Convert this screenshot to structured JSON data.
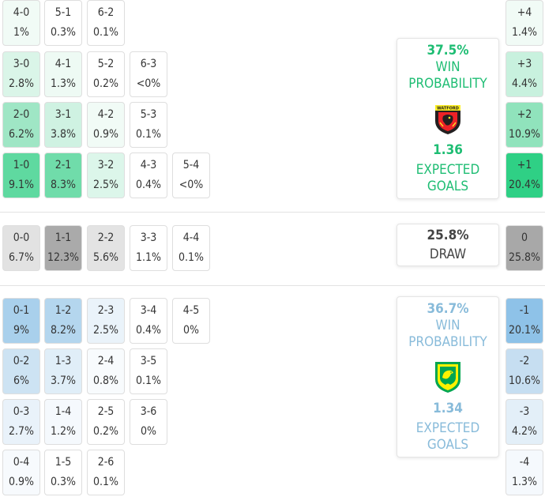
{
  "home": {
    "scores": [
      {
        "score": "4-0",
        "prob": "1%",
        "color": "#f1fbf6"
      },
      {
        "score": "5-1",
        "prob": "0.3%",
        "color": "#ffffff"
      },
      {
        "score": "6-2",
        "prob": "0.1%",
        "color": "#ffffff"
      },
      {
        "score": "3-0",
        "prob": "2.8%",
        "color": "#daf5e8"
      },
      {
        "score": "4-1",
        "prob": "1.3%",
        "color": "#eefaf4"
      },
      {
        "score": "5-2",
        "prob": "0.2%",
        "color": "#ffffff"
      },
      {
        "score": "6-3",
        "prob": "<0%",
        "color": "#ffffff"
      },
      {
        "score": "2-0",
        "prob": "6.2%",
        "color": "#9fe6c5"
      },
      {
        "score": "3-1",
        "prob": "3.8%",
        "color": "#cff2e2"
      },
      {
        "score": "4-2",
        "prob": "0.9%",
        "color": "#f1fbf6"
      },
      {
        "score": "5-3",
        "prob": "0.1%",
        "color": "#ffffff"
      },
      {
        "score": "1-0",
        "prob": "9.1%",
        "color": "#5fd9a0"
      },
      {
        "score": "2-1",
        "prob": "8.3%",
        "color": "#70dcaa"
      },
      {
        "score": "3-2",
        "prob": "2.5%",
        "color": "#dcf6ea"
      },
      {
        "score": "4-3",
        "prob": "0.4%",
        "color": "#ffffff"
      },
      {
        "score": "5-4",
        "prob": "<0%",
        "color": "#ffffff"
      }
    ],
    "margins": [
      {
        "margin": "+4",
        "prob": "1.4%",
        "color": "#f1fbf6"
      },
      {
        "margin": "+3",
        "prob": "4.4%",
        "color": "#c8f1de"
      },
      {
        "margin": "+2",
        "prob": "10.9%",
        "color": "#90e3bc"
      },
      {
        "margin": "+1",
        "prob": "20.4%",
        "color": "#2fd085"
      }
    ],
    "win_pct": "37.5%",
    "win_label": "WIN PROBABILITY",
    "xg": "1.36",
    "xg_label": "EXPECTED GOALS",
    "crest_text": "WATFORD",
    "accent": "#1ebd73"
  },
  "draw": {
    "scores": [
      {
        "score": "0-0",
        "prob": "6.7%",
        "color": "#e2e2e2"
      },
      {
        "score": "1-1",
        "prob": "12.3%",
        "color": "#aaaaaa"
      },
      {
        "score": "2-2",
        "prob": "5.6%",
        "color": "#e3e3e3"
      },
      {
        "score": "3-3",
        "prob": "1.1%",
        "color": "#ffffff"
      },
      {
        "score": "4-4",
        "prob": "0.1%",
        "color": "#ffffff"
      }
    ],
    "margin": {
      "margin": "0",
      "prob": "25.8%",
      "color": "#a8a8a8"
    },
    "pct": "25.8%",
    "label": "DRAW"
  },
  "away": {
    "scores": [
      {
        "score": "0-1",
        "prob": "9%",
        "color": "#a9d0ec"
      },
      {
        "score": "1-2",
        "prob": "8.2%",
        "color": "#b4d6ee"
      },
      {
        "score": "2-3",
        "prob": "2.5%",
        "color": "#eaf3fa"
      },
      {
        "score": "3-4",
        "prob": "0.4%",
        "color": "#ffffff"
      },
      {
        "score": "4-5",
        "prob": "0%",
        "color": "#ffffff"
      },
      {
        "score": "0-2",
        "prob": "6%",
        "color": "#cde3f3"
      },
      {
        "score": "1-3",
        "prob": "3.7%",
        "color": "#e0eef8"
      },
      {
        "score": "2-4",
        "prob": "0.8%",
        "color": "#f8fbfd"
      },
      {
        "score": "3-5",
        "prob": "0.1%",
        "color": "#ffffff"
      },
      {
        "score": "0-3",
        "prob": "2.7%",
        "color": "#e9f2fa"
      },
      {
        "score": "1-4",
        "prob": "1.2%",
        "color": "#f5f9fd"
      },
      {
        "score": "2-5",
        "prob": "0.2%",
        "color": "#ffffff"
      },
      {
        "score": "3-6",
        "prob": "0%",
        "color": "#ffffff"
      },
      {
        "score": "0-4",
        "prob": "0.9%",
        "color": "#f7fafd"
      },
      {
        "score": "1-5",
        "prob": "0.3%",
        "color": "#ffffff"
      },
      {
        "score": "2-6",
        "prob": "0.1%",
        "color": "#ffffff"
      }
    ],
    "margins": [
      {
        "margin": "-1",
        "prob": "20.1%",
        "color": "#8ec2e8"
      },
      {
        "margin": "-2",
        "prob": "10.6%",
        "color": "#c6def1"
      },
      {
        "margin": "-3",
        "prob": "4.2%",
        "color": "#e3eff8"
      },
      {
        "margin": "-4",
        "prob": "1.3%",
        "color": "#f5f9fd"
      }
    ],
    "win_pct": "36.7%",
    "win_label": "WIN PROBABILITY",
    "xg": "1.34",
    "xg_label": "EXPECTED GOALS",
    "accent": "#88bbda"
  }
}
